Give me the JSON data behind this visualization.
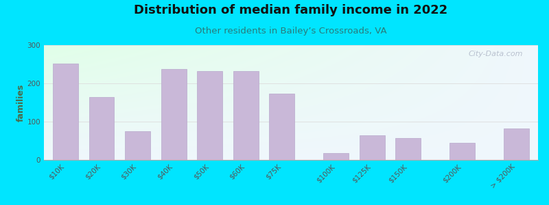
{
  "title": "Distribution of median family income in 2022",
  "subtitle": "Other residents in Bailey’s Crossroads, VA",
  "ylabel": "families",
  "categories": [
    "$10K",
    "$20K",
    "$30K",
    "$40K",
    "$50K",
    "$60K",
    "$75K",
    "$100K",
    "$125K",
    "$150K",
    "$200K",
    "> $200K"
  ],
  "values": [
    252,
    165,
    75,
    237,
    232,
    232,
    173,
    18,
    65,
    57,
    45,
    82
  ],
  "bar_color": "#c9b8d8",
  "bar_edgecolor": "#b8a8cc",
  "background_outer": "#00e5ff",
  "title_fontsize": 13,
  "subtitle_fontsize": 9.5,
  "ylabel_fontsize": 9,
  "tick_fontsize": 7.5,
  "ylim": [
    0,
    300
  ],
  "yticks": [
    0,
    100,
    200,
    300
  ],
  "watermark": "City-Data.com",
  "group1_indices": [
    0,
    1,
    2,
    3,
    4,
    5,
    6
  ],
  "group2_indices": [
    7,
    8,
    9
  ],
  "group3_indices": [
    10
  ],
  "group4_indices": [
    11
  ]
}
